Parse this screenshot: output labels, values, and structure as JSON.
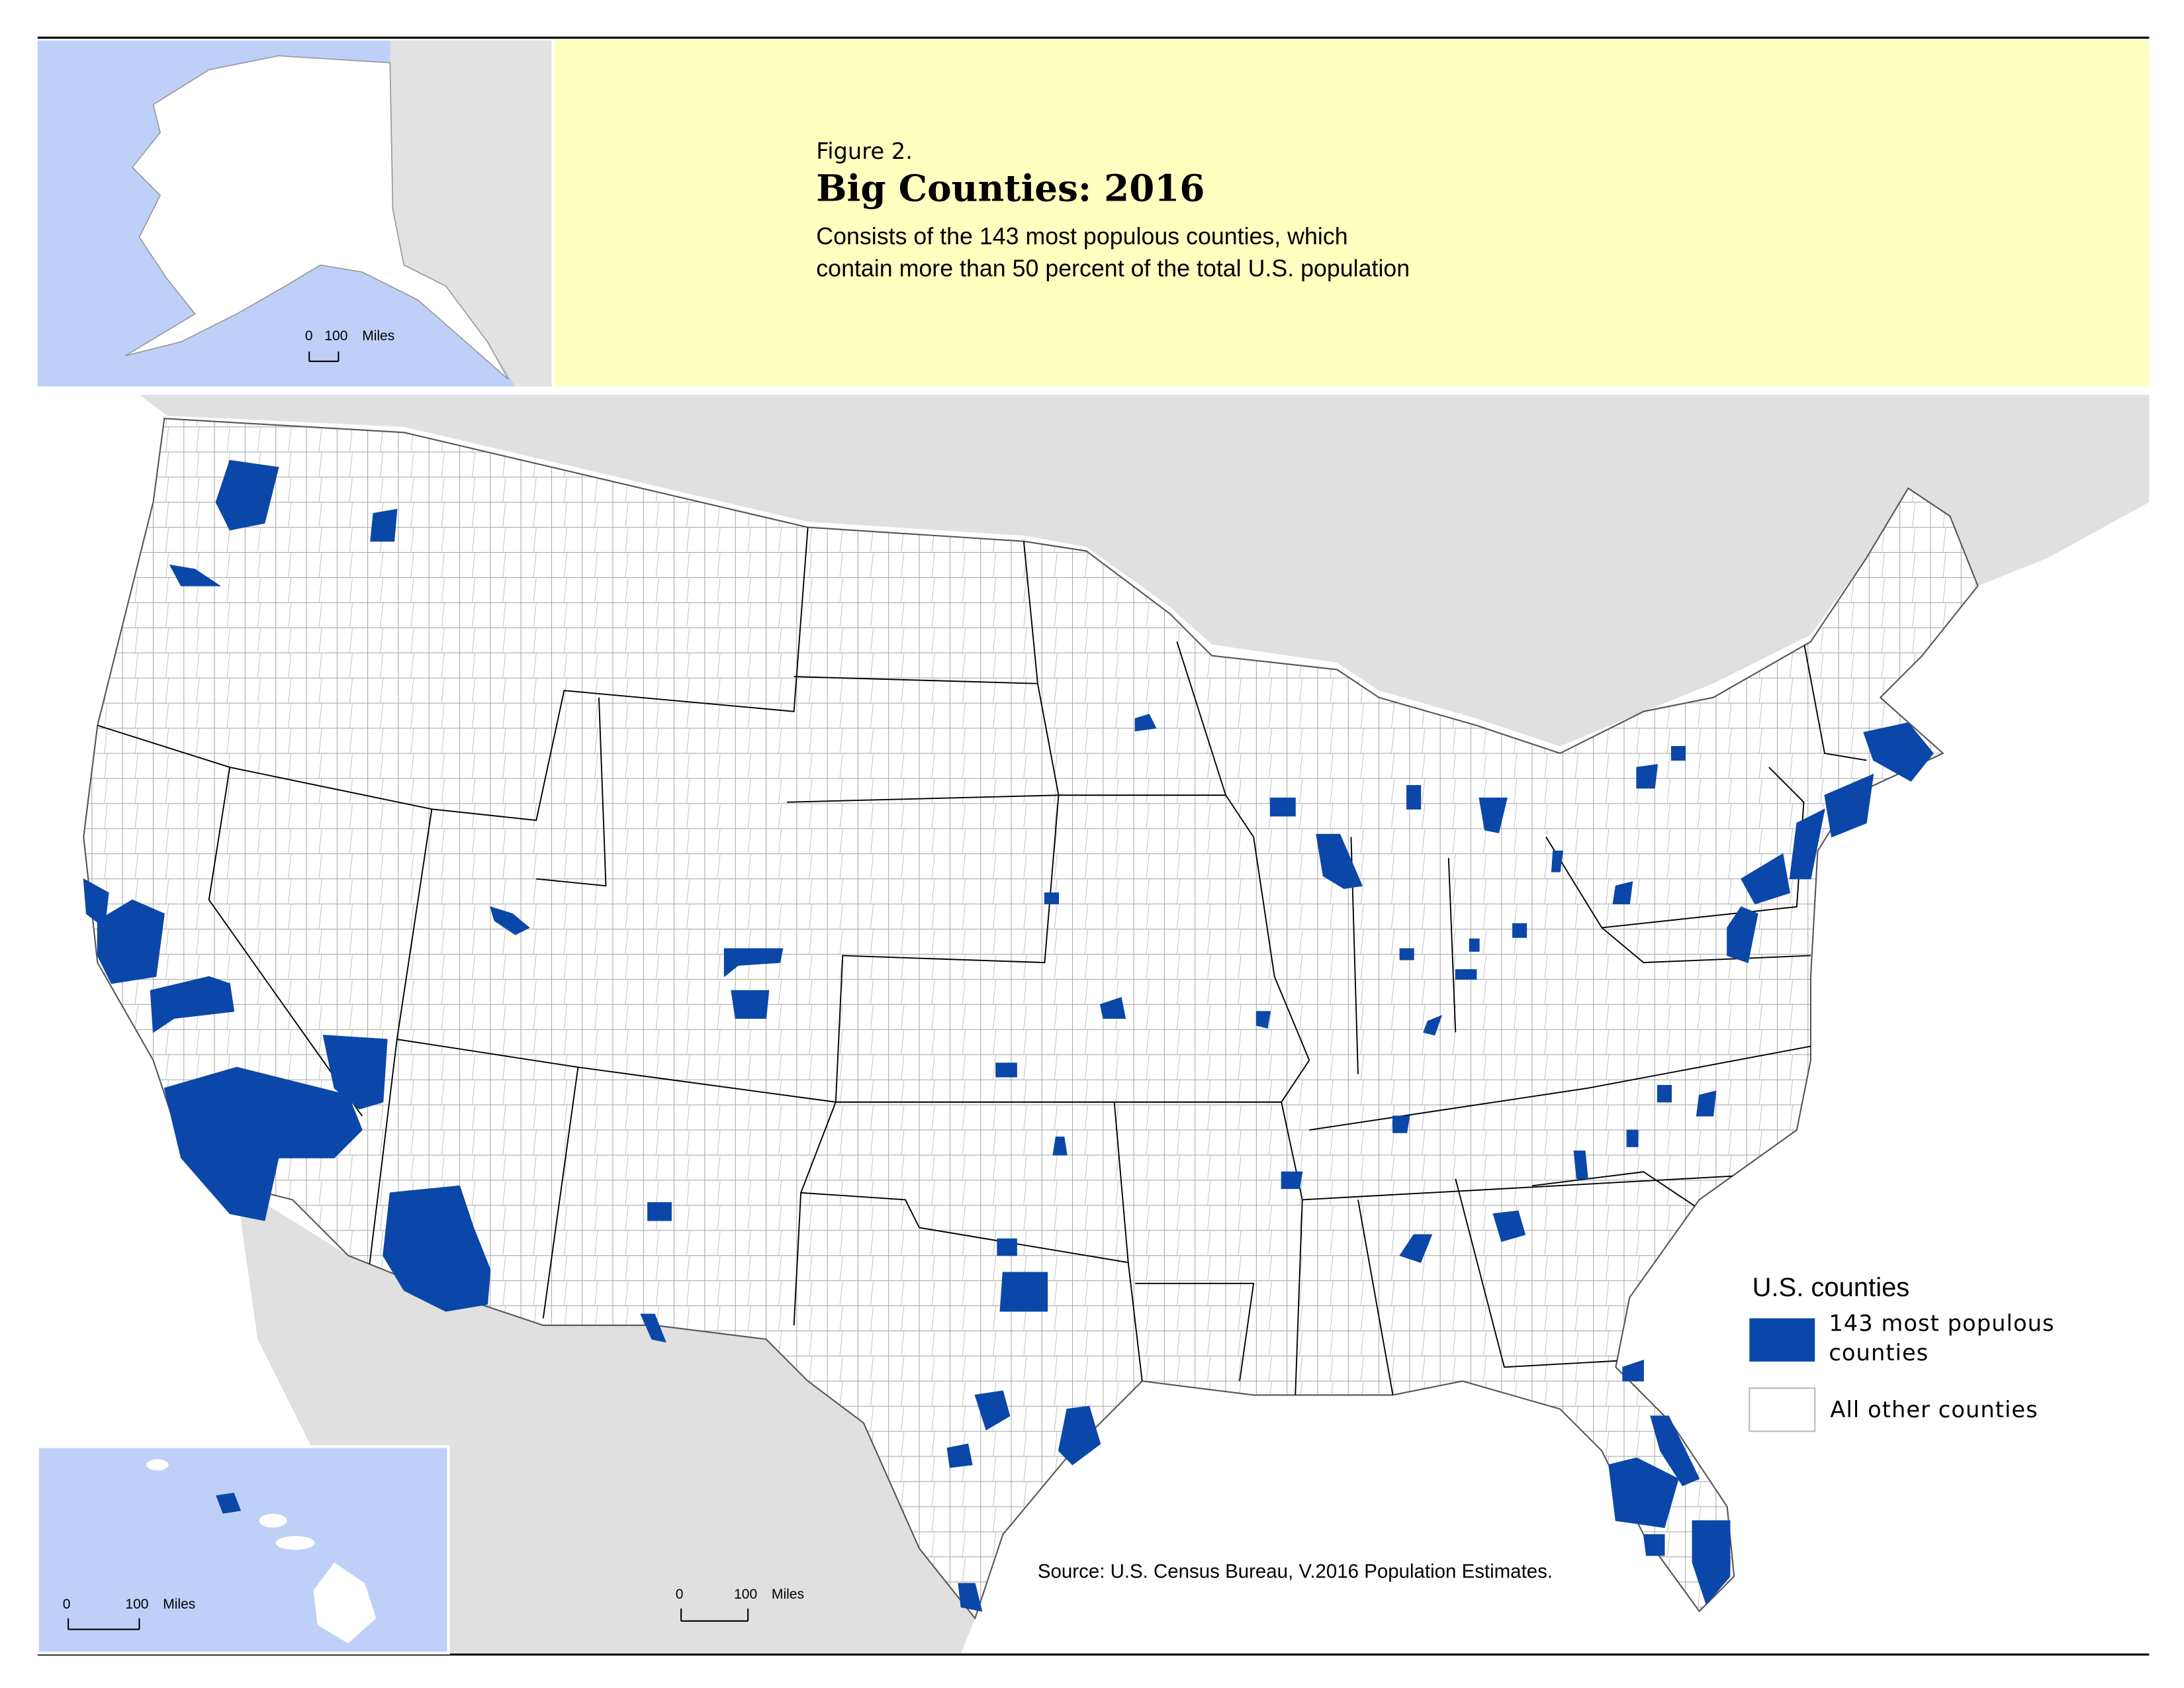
{
  "figure_label": "Figure 2.",
  "title": "Big Counties: 2016",
  "subtitle": [
    "Consists of the 143 most populous counties, which",
    "contain more than 50 percent of the total U.S. population"
  ],
  "alaska_scale": {
    "zero": "0",
    "distance": "100",
    "unit": "Miles"
  },
  "hawaii_scale": {
    "zero": "0",
    "distance": "100",
    "unit": "Miles"
  },
  "main_scale": {
    "zero": "0",
    "distance": "100",
    "unit": "Miles"
  },
  "legend": {
    "title": "U.S. counties",
    "items": [
      "143 most populous counties",
      "All other counties"
    ]
  },
  "source": "Source: U.S. Census Bureau, V.2016 Population Estimates."
}
